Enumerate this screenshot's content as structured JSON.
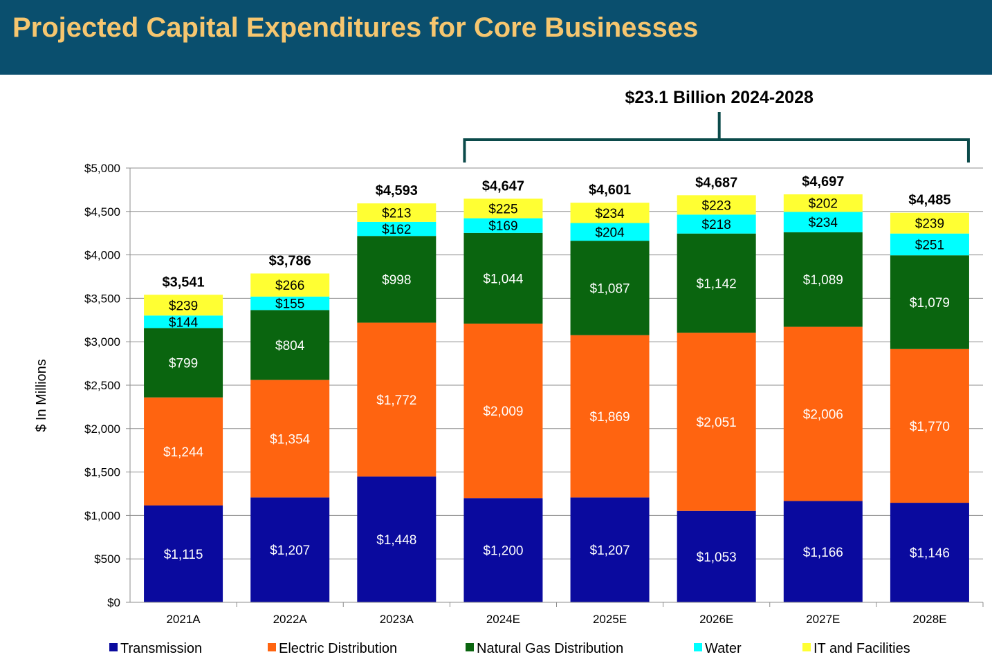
{
  "header": {
    "title": "Projected Capital Expenditures for Core Businesses"
  },
  "chart_data": {
    "type": "bar",
    "stacked": true,
    "ylabel": "$ In Millions",
    "ylim": [
      0,
      5000
    ],
    "yticks": [
      0,
      500,
      1000,
      1500,
      2000,
      2500,
      3000,
      3500,
      4000,
      4500,
      5000
    ],
    "ytick_labels": [
      "$0",
      "$500",
      "$1,000",
      "$1,500",
      "$2,000",
      "$2,500",
      "$3,000",
      "$3,500",
      "$4,000",
      "$4,500",
      "$5,000"
    ],
    "grid": true,
    "legend_position": "bottom",
    "categories": [
      "2021A",
      "2022A",
      "2023A",
      "2024E",
      "2025E",
      "2026E",
      "2027E",
      "2028E"
    ],
    "totals": [
      3541,
      3786,
      4593,
      4647,
      4601,
      4687,
      4697,
      4485
    ],
    "total_labels": [
      "$3,541",
      "$3,786",
      "$4,593",
      "$4,647",
      "$4,601",
      "$4,687",
      "$4,697",
      "$4,485"
    ],
    "annotation": {
      "text": "$23.1 Billion 2024-2028",
      "span": [
        "2024E",
        "2028E"
      ]
    },
    "series": [
      {
        "name": "Transmission",
        "color": "#0a0a9e",
        "label_color": "#ffffff",
        "values": [
          1115,
          1207,
          1448,
          1200,
          1207,
          1053,
          1166,
          1146
        ],
        "labels": [
          "$1,115",
          "$1,207",
          "$1,448",
          "$1,200",
          "$1,207",
          "$1,053",
          "$1,166",
          "$1,146"
        ]
      },
      {
        "name": "Electric Distribution",
        "color": "#ff6410",
        "label_color": "#ffffff",
        "values": [
          1244,
          1354,
          1772,
          2009,
          1869,
          2051,
          2006,
          1770
        ],
        "labels": [
          "$1,244",
          "$1,354",
          "$1,772",
          "$2,009",
          "$1,869",
          "$2,051",
          "$2,006",
          "$1,770"
        ]
      },
      {
        "name": "Natural Gas Distribution",
        "color": "#0a650f",
        "label_color": "#ffffff",
        "values": [
          799,
          804,
          998,
          1044,
          1087,
          1142,
          1089,
          1079
        ],
        "labels": [
          "$799",
          "$804",
          "$998",
          "$1,044",
          "$1,087",
          "$1,142",
          "$1,089",
          "$1,079"
        ]
      },
      {
        "name": "Water",
        "color": "#00ffff",
        "label_color": "#000000",
        "values": [
          144,
          155,
          162,
          169,
          204,
          218,
          234,
          251
        ],
        "labels": [
          "$144",
          "$155",
          "$162",
          "$169",
          "$204",
          "$218",
          "$234",
          "$251"
        ]
      },
      {
        "name": "IT and Facilities",
        "color": "#ffff33",
        "label_color": "#000000",
        "values": [
          239,
          266,
          213,
          225,
          234,
          223,
          202,
          239
        ],
        "labels": [
          "$239",
          "$266",
          "$213",
          "$225",
          "$234",
          "$223",
          "$202",
          "$239"
        ]
      }
    ]
  }
}
